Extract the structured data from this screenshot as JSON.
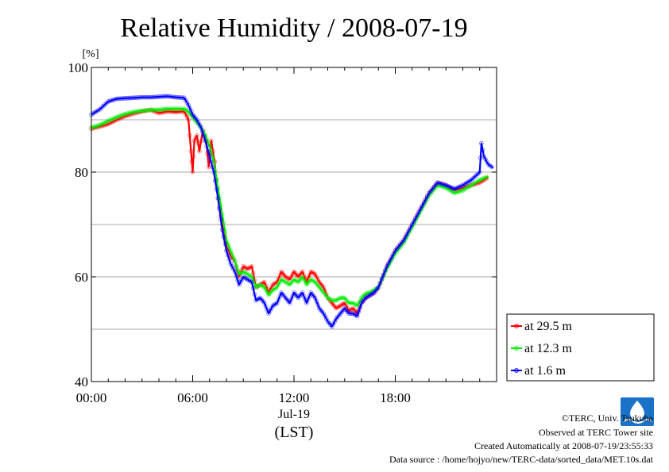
{
  "chart_data": {
    "type": "line",
    "title": "Relative Humidity / 2008-07-19",
    "ylabel": "[%]",
    "xlabel": "(LST)",
    "date_label": "Jul-19",
    "ylim": [
      40,
      100
    ],
    "xlim": [
      0,
      24
    ],
    "y_ticks": [
      40,
      60,
      80,
      100
    ],
    "x_ticks": [
      {
        "value": 0,
        "label": "00:00"
      },
      {
        "value": 6,
        "label": "06:00"
      },
      {
        "value": 12,
        "label": "12:00"
      },
      {
        "value": 18,
        "label": "18:00"
      }
    ],
    "grid": true,
    "legend_position": "right",
    "series": [
      {
        "name": "at 29.5 m",
        "color": "#ff0000",
        "points": [
          [
            0,
            88.3
          ],
          [
            0.5,
            88.7
          ],
          [
            1,
            89.2
          ],
          [
            1.5,
            90
          ],
          [
            2,
            90.7
          ],
          [
            2.5,
            91.2
          ],
          [
            3,
            91.6
          ],
          [
            3.5,
            91.9
          ],
          [
            4,
            91.3
          ],
          [
            4.5,
            91.6
          ],
          [
            5,
            91.5
          ],
          [
            5.5,
            91.6
          ],
          [
            5.75,
            90
          ],
          [
            5.9,
            84
          ],
          [
            6.0,
            80
          ],
          [
            6.1,
            86
          ],
          [
            6.25,
            87
          ],
          [
            6.4,
            84
          ],
          [
            6.6,
            88
          ],
          [
            6.8,
            86
          ],
          [
            6.95,
            81
          ],
          [
            7.1,
            86
          ],
          [
            7.3,
            82
          ],
          [
            7.5,
            75
          ],
          [
            7.75,
            70
          ],
          [
            8,
            66
          ],
          [
            8.25,
            64
          ],
          [
            8.5,
            63
          ],
          [
            8.75,
            60
          ],
          [
            9,
            62
          ],
          [
            9.25,
            61.5
          ],
          [
            9.5,
            62
          ],
          [
            9.75,
            58
          ],
          [
            10,
            58.5
          ],
          [
            10.25,
            59
          ],
          [
            10.5,
            57
          ],
          [
            10.75,
            58.5
          ],
          [
            11,
            59
          ],
          [
            11.25,
            61
          ],
          [
            11.5,
            60
          ],
          [
            11.75,
            59.5
          ],
          [
            12,
            61
          ],
          [
            12.25,
            60
          ],
          [
            12.5,
            61
          ],
          [
            12.75,
            59
          ],
          [
            13,
            61
          ],
          [
            13.25,
            60.5
          ],
          [
            13.5,
            59
          ],
          [
            13.75,
            58
          ],
          [
            14,
            56
          ],
          [
            14.25,
            55
          ],
          [
            14.5,
            54
          ],
          [
            14.75,
            54.5
          ],
          [
            15,
            55
          ],
          [
            15.25,
            53.5
          ],
          [
            15.5,
            54
          ],
          [
            15.75,
            53
          ],
          [
            16,
            55
          ],
          [
            16.25,
            56
          ],
          [
            16.5,
            56.5
          ],
          [
            16.75,
            57
          ],
          [
            17,
            58
          ],
          [
            17.5,
            62
          ],
          [
            18,
            65
          ],
          [
            18.5,
            67
          ],
          [
            19,
            70
          ],
          [
            19.5,
            73
          ],
          [
            20,
            76
          ],
          [
            20.5,
            78
          ],
          [
            21,
            77.5
          ],
          [
            21.5,
            76.5
          ],
          [
            22,
            77
          ],
          [
            22.5,
            77.5
          ],
          [
            23,
            78
          ],
          [
            23.5,
            79
          ]
        ]
      },
      {
        "name": "at 12.3 m",
        "color": "#00ee00",
        "points": [
          [
            0,
            88.5
          ],
          [
            0.5,
            89
          ],
          [
            1,
            89.8
          ],
          [
            1.5,
            90.5
          ],
          [
            2,
            91.1
          ],
          [
            2.5,
            91.5
          ],
          [
            3,
            91.7
          ],
          [
            3.5,
            91.9
          ],
          [
            4,
            91.9
          ],
          [
            4.5,
            92.1
          ],
          [
            5,
            92.1
          ],
          [
            5.5,
            92.1
          ],
          [
            5.75,
            91.5
          ],
          [
            6,
            90.5
          ],
          [
            6.25,
            89.5
          ],
          [
            6.5,
            88.5
          ],
          [
            6.75,
            87
          ],
          [
            7,
            85
          ],
          [
            7.25,
            82
          ],
          [
            7.5,
            77
          ],
          [
            7.75,
            72
          ],
          [
            8,
            67
          ],
          [
            8.25,
            65
          ],
          [
            8.5,
            63
          ],
          [
            8.75,
            60.5
          ],
          [
            9,
            61
          ],
          [
            9.25,
            60.5
          ],
          [
            9.5,
            60
          ],
          [
            9.75,
            58
          ],
          [
            10,
            58.5
          ],
          [
            10.25,
            58
          ],
          [
            10.5,
            56.5
          ],
          [
            10.75,
            57.5
          ],
          [
            11,
            58
          ],
          [
            11.25,
            59.5
          ],
          [
            11.5,
            59
          ],
          [
            11.75,
            58.5
          ],
          [
            12,
            59.5
          ],
          [
            12.25,
            59
          ],
          [
            12.5,
            60
          ],
          [
            12.75,
            58.5
          ],
          [
            13,
            59.5
          ],
          [
            13.25,
            59
          ],
          [
            13.5,
            58
          ],
          [
            13.75,
            57
          ],
          [
            14,
            56
          ],
          [
            14.25,
            55.5
          ],
          [
            14.5,
            55.5
          ],
          [
            14.75,
            56
          ],
          [
            15,
            56
          ],
          [
            15.25,
            55
          ],
          [
            15.5,
            55
          ],
          [
            15.75,
            54.5
          ],
          [
            16,
            56
          ],
          [
            16.25,
            56.8
          ],
          [
            16.5,
            57
          ],
          [
            16.75,
            57.5
          ],
          [
            17,
            58
          ],
          [
            17.5,
            61.5
          ],
          [
            18,
            64.5
          ],
          [
            18.5,
            66.5
          ],
          [
            19,
            69.5
          ],
          [
            19.5,
            72.5
          ],
          [
            20,
            75.5
          ],
          [
            20.5,
            77.5
          ],
          [
            21,
            77
          ],
          [
            21.5,
            76
          ],
          [
            22,
            76.5
          ],
          [
            22.5,
            77.5
          ],
          [
            23,
            78.5
          ],
          [
            23.5,
            79.2
          ]
        ]
      },
      {
        "name": "at 1.6 m",
        "color": "#0000ff",
        "points": [
          [
            0,
            91
          ],
          [
            0.5,
            92
          ],
          [
            1,
            93.5
          ],
          [
            1.5,
            94
          ],
          [
            2,
            94.1
          ],
          [
            2.5,
            94.2
          ],
          [
            3,
            94.3
          ],
          [
            3.5,
            94.3
          ],
          [
            4,
            94.4
          ],
          [
            4.5,
            94.5
          ],
          [
            5,
            94.3
          ],
          [
            5.5,
            94.2
          ],
          [
            5.75,
            92.8
          ],
          [
            6,
            91
          ],
          [
            6.25,
            90
          ],
          [
            6.5,
            88.5
          ],
          [
            6.75,
            86
          ],
          [
            7,
            83
          ],
          [
            7.25,
            80
          ],
          [
            7.5,
            75
          ],
          [
            7.75,
            69
          ],
          [
            8,
            65
          ],
          [
            8.25,
            62.5
          ],
          [
            8.5,
            61
          ],
          [
            8.75,
            58.5
          ],
          [
            9,
            60
          ],
          [
            9.25,
            59.5
          ],
          [
            9.5,
            59
          ],
          [
            9.75,
            55.5
          ],
          [
            10,
            56
          ],
          [
            10.25,
            55
          ],
          [
            10.5,
            53
          ],
          [
            10.75,
            54.5
          ],
          [
            11,
            55
          ],
          [
            11.25,
            57
          ],
          [
            11.5,
            56
          ],
          [
            11.75,
            55
          ],
          [
            12,
            57
          ],
          [
            12.25,
            56
          ],
          [
            12.5,
            57
          ],
          [
            12.75,
            55
          ],
          [
            13,
            57
          ],
          [
            13.25,
            56
          ],
          [
            13.5,
            54
          ],
          [
            13.75,
            53
          ],
          [
            14,
            51.5
          ],
          [
            14.25,
            50.5
          ],
          [
            14.5,
            52
          ],
          [
            14.75,
            53
          ],
          [
            15,
            54
          ],
          [
            15.25,
            53
          ],
          [
            15.5,
            53
          ],
          [
            15.75,
            52.5
          ],
          [
            16,
            55
          ],
          [
            16.25,
            56
          ],
          [
            16.5,
            56.5
          ],
          [
            16.75,
            57
          ],
          [
            17,
            58
          ],
          [
            17.5,
            62
          ],
          [
            18,
            65
          ],
          [
            18.5,
            67
          ],
          [
            19,
            70
          ],
          [
            19.5,
            73
          ],
          [
            20,
            76
          ],
          [
            20.5,
            78
          ],
          [
            21,
            77.5
          ],
          [
            21.5,
            76.8
          ],
          [
            22,
            77.5
          ],
          [
            22.5,
            78.5
          ],
          [
            23,
            80
          ],
          [
            23.1,
            85.5
          ],
          [
            23.25,
            83
          ],
          [
            23.5,
            81.5
          ],
          [
            23.8,
            80.8
          ]
        ]
      }
    ]
  },
  "credits": {
    "copyright": "©TERC, Univ. Tsukuba",
    "observed": "Observed at TERC Tower site",
    "created": "Created Automatically at 2008-07-19/23:55:33",
    "source": "Data source : /home/hojyo/new/TERC-data/sorted_data/MET.10s.dat"
  },
  "logo": {
    "text": "TERC",
    "icon": "terc-logo-icon"
  }
}
